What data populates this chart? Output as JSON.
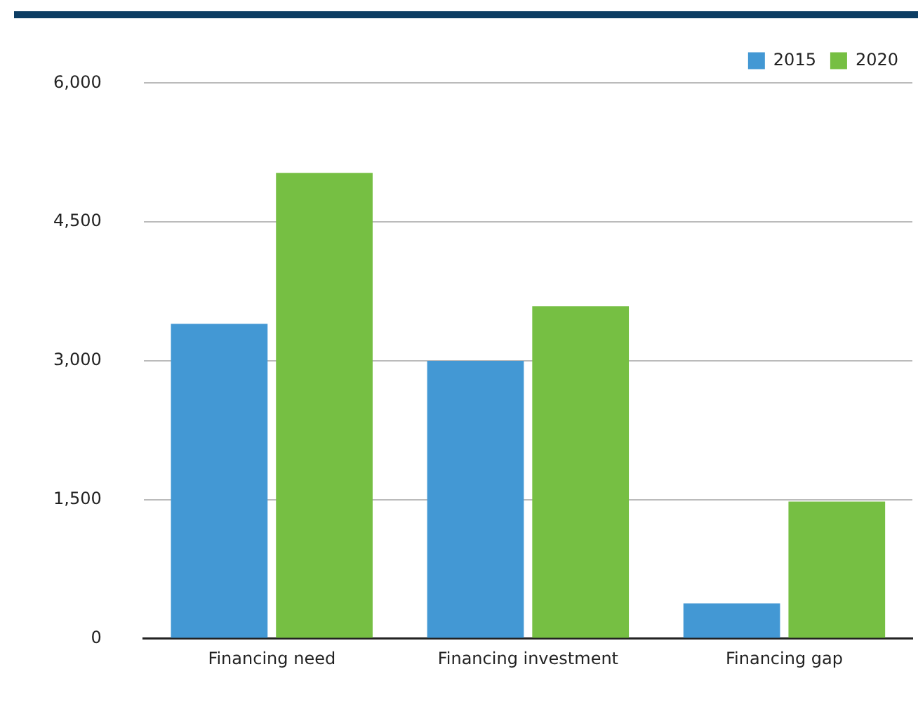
{
  "chart_data": {
    "type": "bar",
    "categories": [
      "Financing need",
      "Financing investment",
      "Financing gap"
    ],
    "series": [
      {
        "name": "2015",
        "color": "#4398d4",
        "values": [
          3400,
          3000,
          380
        ]
      },
      {
        "name": "2020",
        "color": "#76bf43",
        "values": [
          5030,
          3590,
          1480
        ]
      }
    ],
    "ylim": [
      0,
      6000
    ],
    "yticks": [
      {
        "value": 0,
        "label": "0"
      },
      {
        "value": 1500,
        "label": "1,500"
      },
      {
        "value": 3000,
        "label": "3,000"
      },
      {
        "value": 4500,
        "label": "4,500"
      },
      {
        "value": 6000,
        "label": "6,000"
      }
    ],
    "grid": "y",
    "legend": "top right"
  }
}
